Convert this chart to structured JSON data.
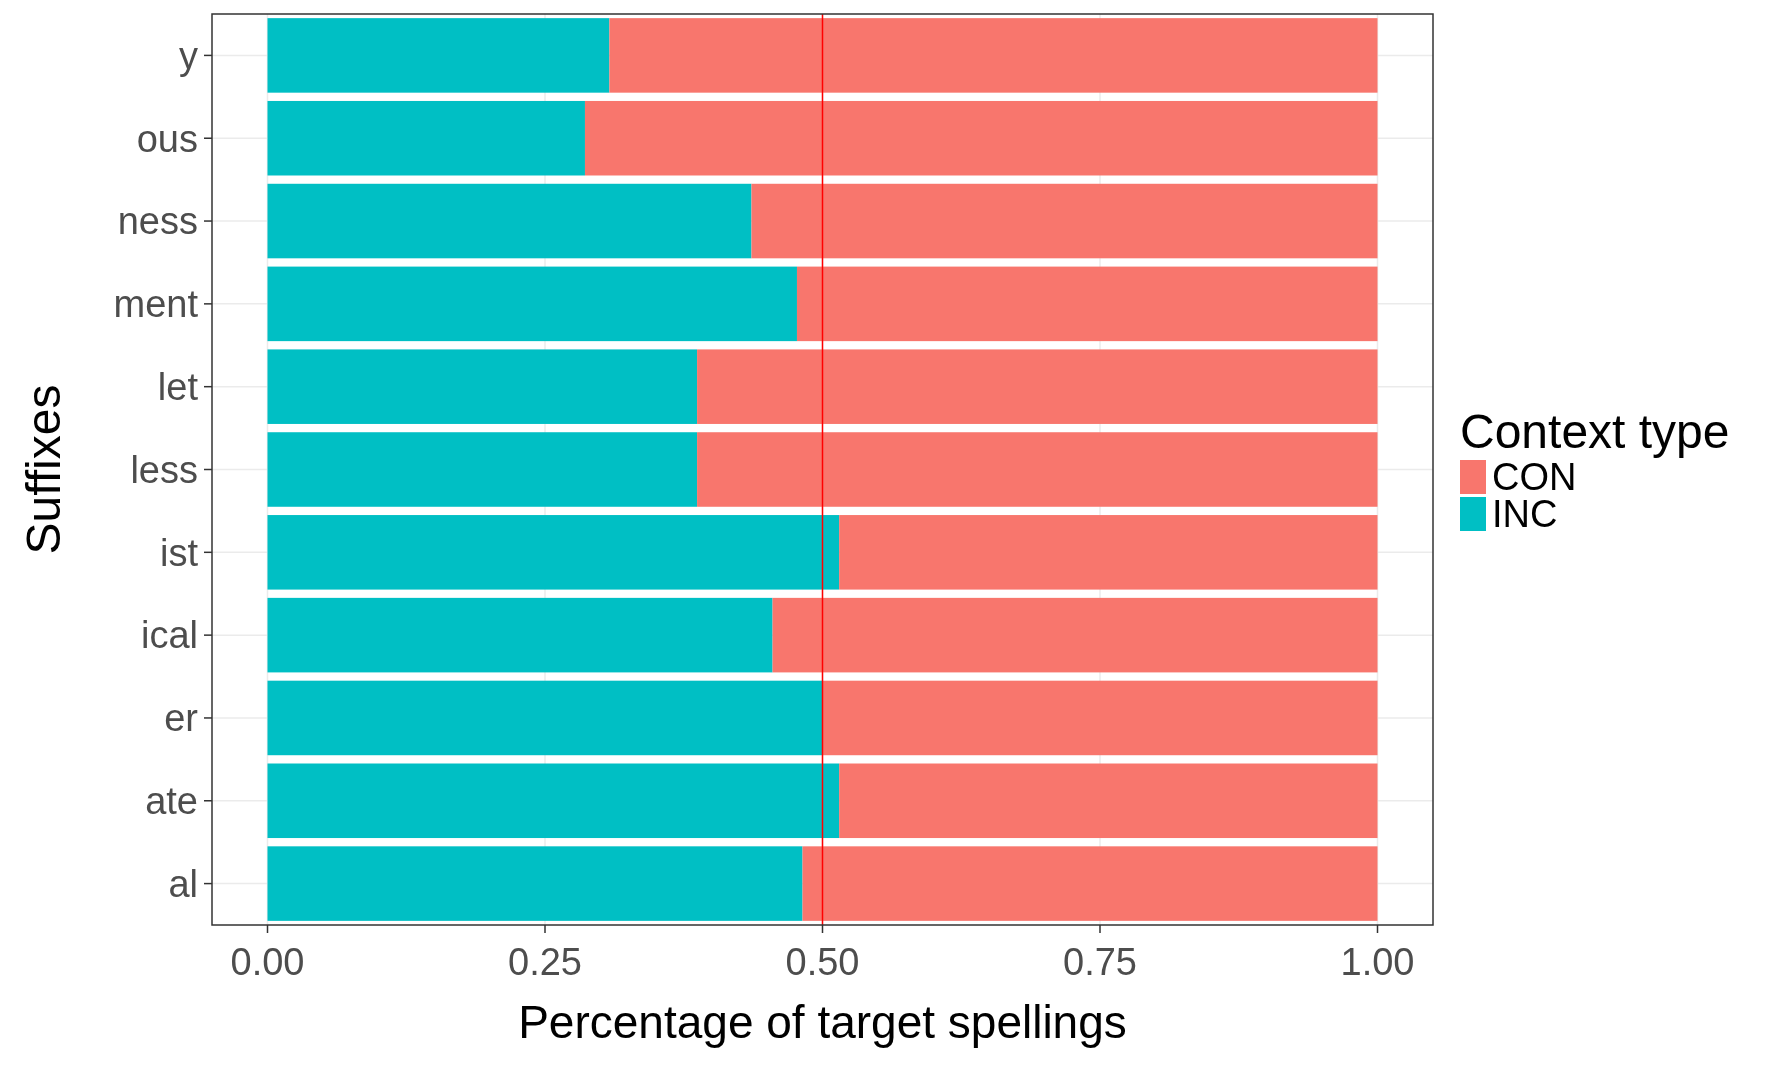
{
  "chart_data": {
    "type": "bar",
    "orientation": "horizontal",
    "stacked": true,
    "xlabel": "Percentage of target spellings",
    "ylabel": "Suffixes",
    "legend_title": "Context type",
    "categories": [
      "y",
      "ous",
      "ness",
      "ment",
      "let",
      "less",
      "ist",
      "ical",
      "er",
      "ate",
      "al"
    ],
    "series": [
      {
        "name": "INC",
        "color": "#00bfc4",
        "values": [
          0.308,
          0.286,
          0.436,
          0.477,
          0.387,
          0.387,
          0.515,
          0.455,
          0.5,
          0.515,
          0.482
        ]
      },
      {
        "name": "CON",
        "color": "#f8766d",
        "values": [
          0.692,
          0.714,
          0.564,
          0.523,
          0.613,
          0.613,
          0.485,
          0.545,
          0.5,
          0.485,
          0.518
        ]
      }
    ],
    "xlim": [
      -0.05,
      1.05
    ],
    "xticks": [
      {
        "value": 0,
        "label": "0.00"
      },
      {
        "value": 0.25,
        "label": "0.25"
      },
      {
        "value": 0.5,
        "label": "0.50"
      },
      {
        "value": 0.75,
        "label": "0.75"
      },
      {
        "value": 1,
        "label": "1.00"
      }
    ],
    "ref_lines": [
      {
        "axis": "x",
        "value": 0.5,
        "color": "#ff0000"
      }
    ],
    "grid": true,
    "legend": "right"
  }
}
